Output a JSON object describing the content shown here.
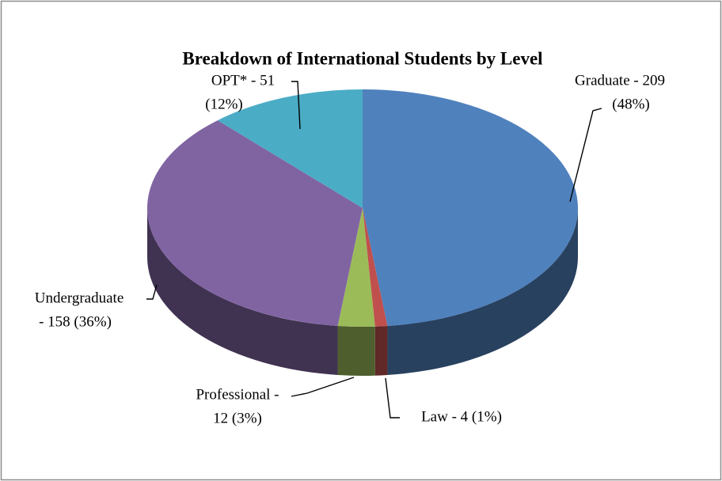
{
  "chart_data": {
    "type": "pie3d",
    "title": "Breakdown of International Students by Level",
    "values": [
      209,
      4,
      12,
      158,
      51
    ],
    "value_labels": [
      [
        "Graduate - 209",
        "(48%)"
      ],
      [
        "Law - 4 (1%)"
      ],
      [
        "Professional -",
        "12 (3%)"
      ],
      [
        "Undergraduate",
        "- 158 (36%)"
      ],
      [
        "OPT* - 51",
        "(12%)"
      ]
    ],
    "colors": [
      "#4f81bd",
      "#c0504d",
      "#9bbb59",
      "#8064a2",
      "#4bacc6"
    ]
  }
}
